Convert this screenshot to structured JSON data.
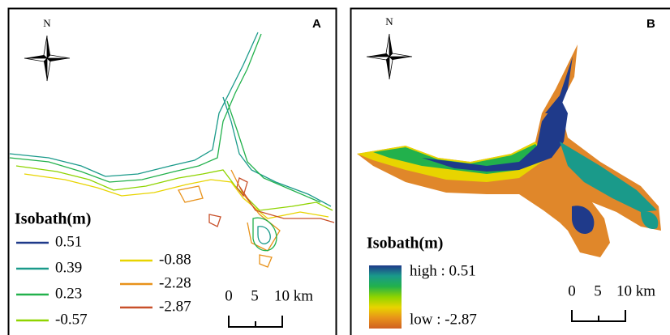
{
  "panels": [
    {
      "label": "A",
      "north": "N",
      "legend": {
        "title": "Isobath(m)",
        "items": [
          {
            "label": "0.51",
            "color": "#1f3a8a"
          },
          {
            "label": "0.39",
            "color": "#1a9a8a"
          },
          {
            "label": "0.23",
            "color": "#22b14c"
          },
          {
            "label": "-0.57",
            "color": "#8fd400"
          },
          {
            "label": "-0.88",
            "color": "#e8d400"
          },
          {
            "label": "-2.28",
            "color": "#e8921a"
          },
          {
            "label": "-2.87",
            "color": "#c8502a"
          }
        ]
      },
      "scale": {
        "labels": [
          "0",
          "5",
          "10 km"
        ]
      }
    },
    {
      "label": "B",
      "north": "N",
      "legend": {
        "title": "Isobath(m)",
        "high": "high : 0.51",
        "low": "low : -2.87",
        "ramp": [
          "#1f3a8a",
          "#1a9a8a",
          "#22b14c",
          "#8fd400",
          "#e8d400",
          "#e8921a",
          "#d06020"
        ]
      },
      "scale": {
        "labels": [
          "0",
          "5",
          "10 km"
        ]
      }
    }
  ]
}
